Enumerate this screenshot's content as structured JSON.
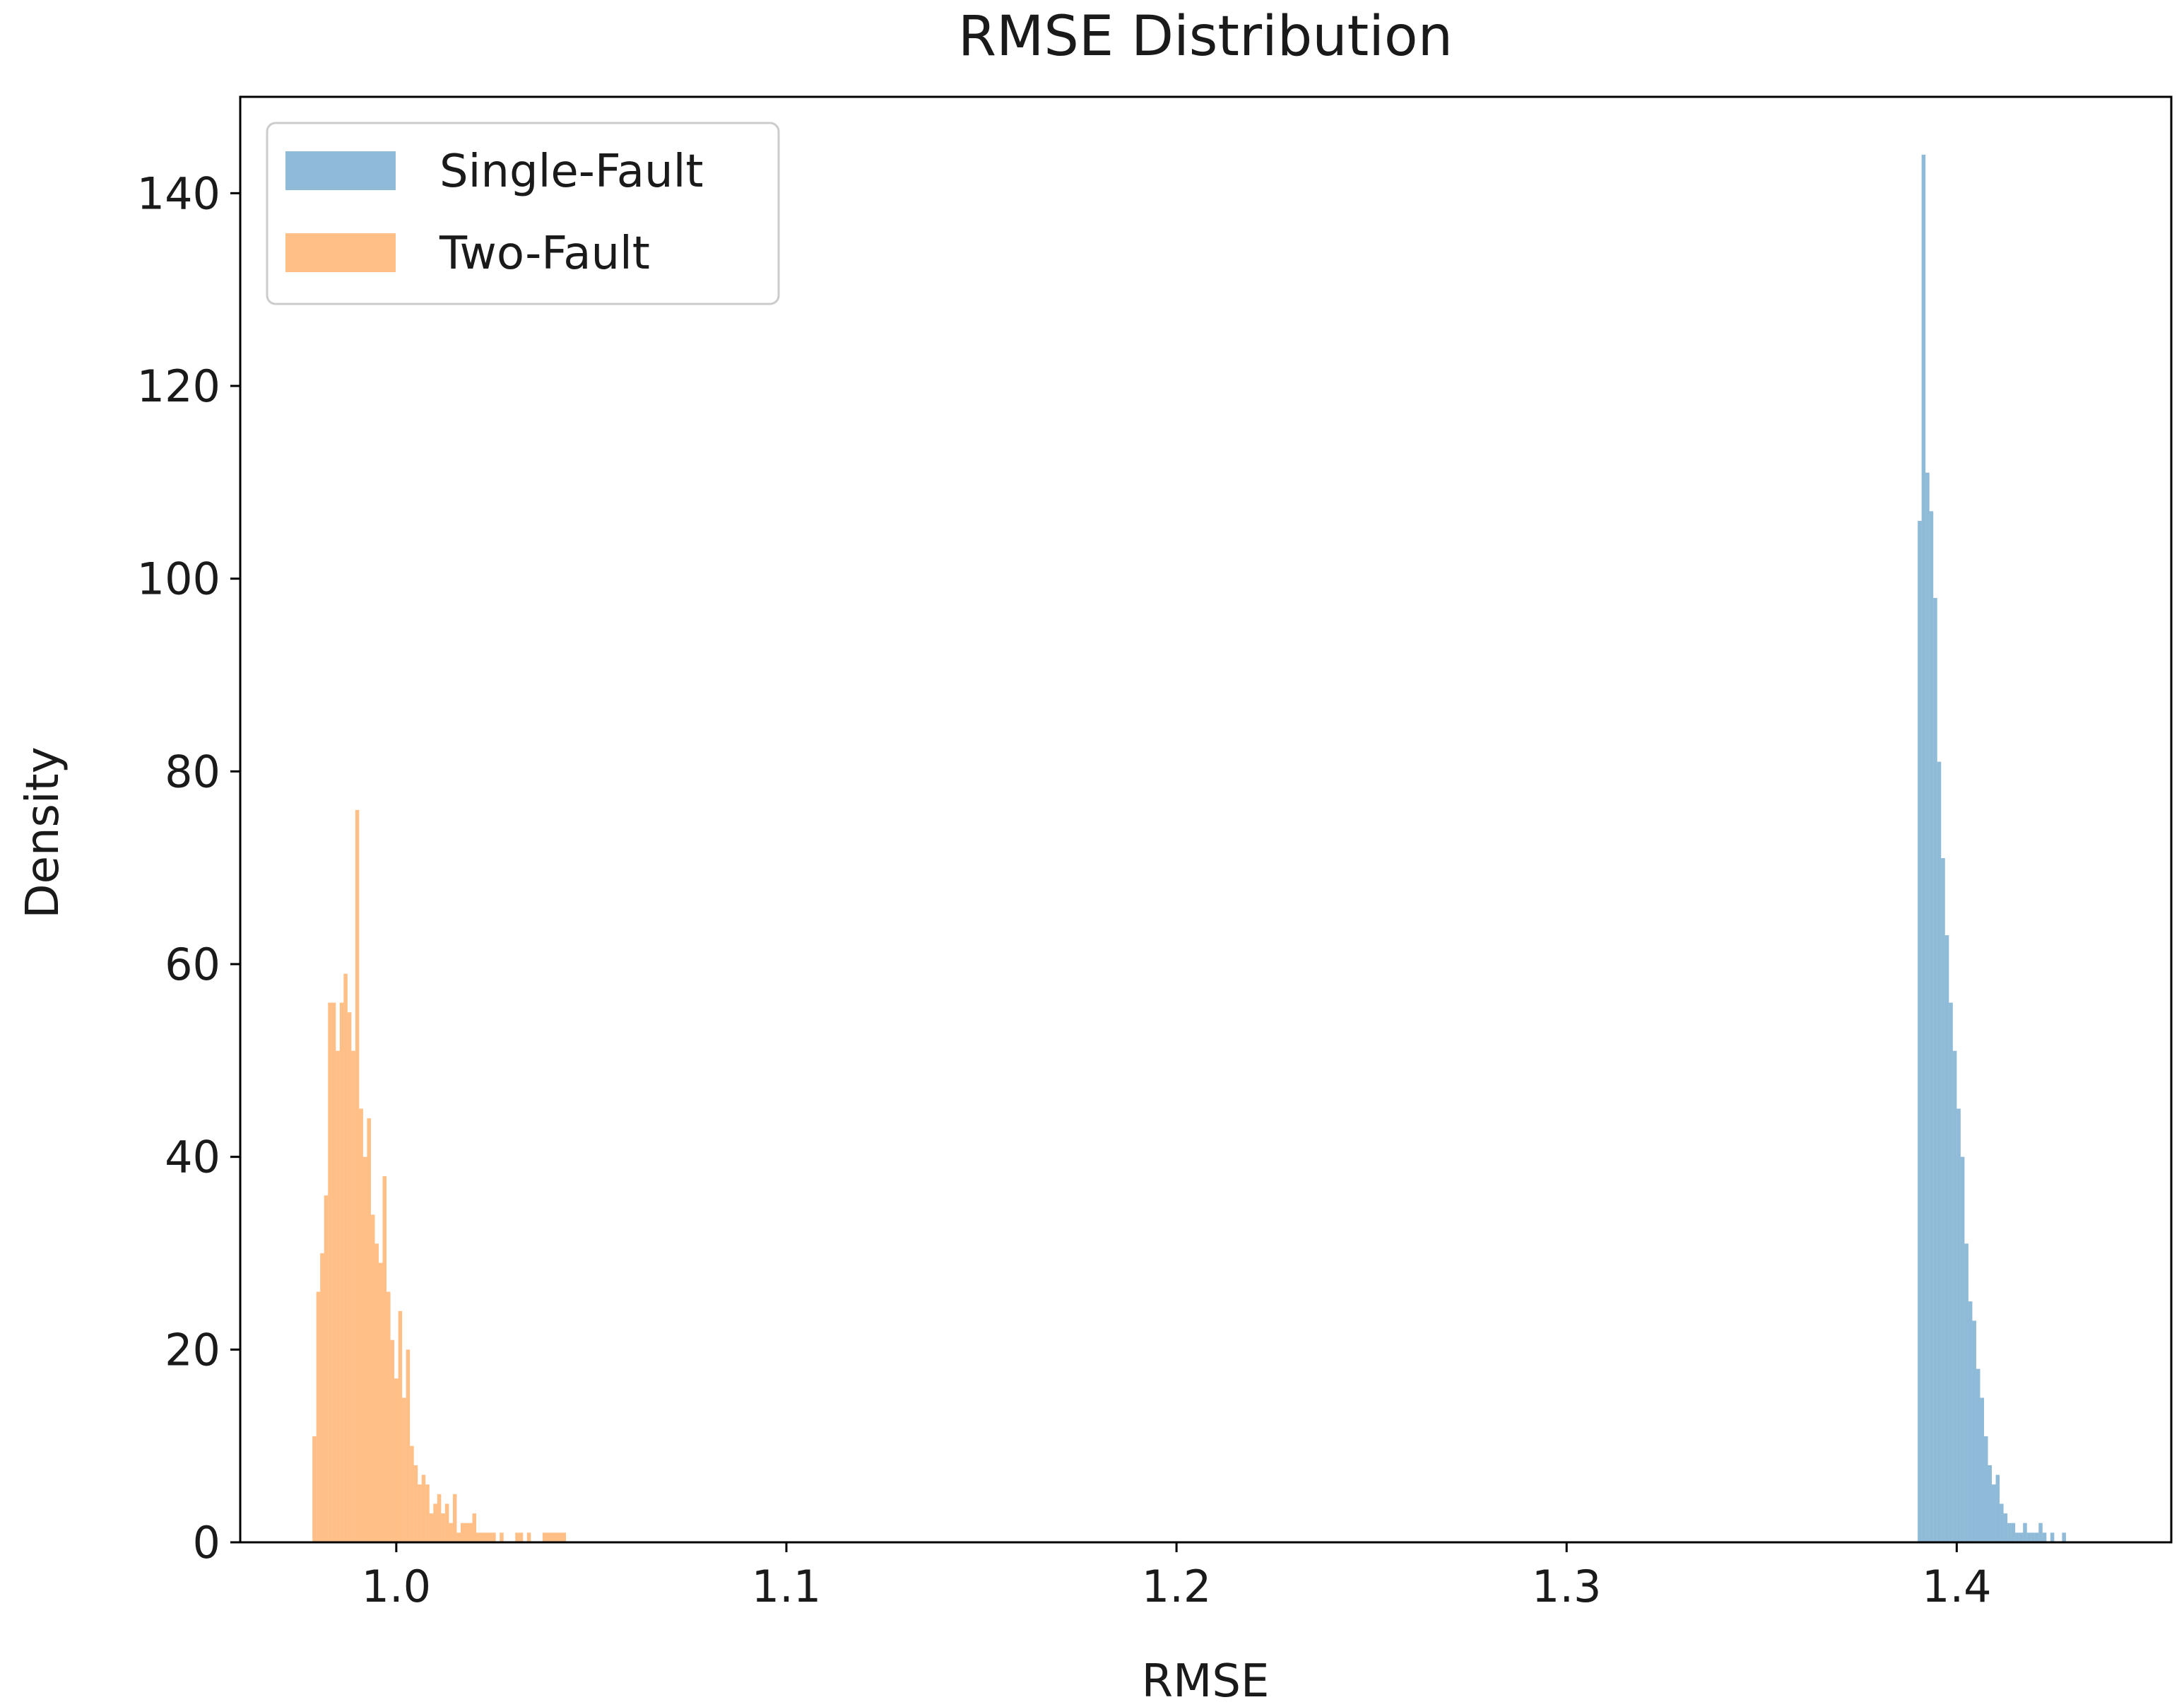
{
  "chart_data": {
    "type": "bar",
    "title": "RMSE Distribution",
    "xlabel": "RMSE",
    "ylabel": "Density",
    "xlim": [
      0.96,
      1.455
    ],
    "ylim": [
      0,
      150
    ],
    "xticks": [
      1.0,
      1.1,
      1.2,
      1.3,
      1.4
    ],
    "xtick_labels": [
      "1.0",
      "1.1",
      "1.2",
      "1.3",
      "1.4"
    ],
    "yticks": [
      0,
      20,
      40,
      60,
      80,
      100,
      120,
      140
    ],
    "ytick_labels": [
      "0",
      "20",
      "40",
      "60",
      "80",
      "100",
      "120",
      "140"
    ],
    "grid": false,
    "legend_position": "top-left",
    "series": [
      {
        "name": "Single-Fault",
        "color": "#1f77b4",
        "opacity": 0.5,
        "bin_start": 1.39,
        "bin_width": 0.001,
        "values": [
          106,
          144,
          111,
          107,
          98,
          81,
          71,
          63,
          56,
          51,
          45,
          40,
          31,
          25,
          23,
          18,
          15,
          11,
          8,
          6,
          7,
          4,
          3,
          2,
          2,
          1,
          1,
          2,
          1,
          1,
          1,
          2,
          1,
          0,
          1,
          0,
          0,
          1,
          0
        ]
      },
      {
        "name": "Two-Fault",
        "color": "#ff7f0e",
        "opacity": 0.5,
        "bin_start": 0.9785,
        "bin_width": 0.001,
        "values": [
          11,
          26,
          30,
          36,
          56,
          56,
          51,
          56,
          59,
          55,
          51,
          76,
          45,
          40,
          44,
          34,
          31,
          29,
          38,
          26,
          21,
          17,
          24,
          15,
          20,
          10,
          8,
          6,
          7,
          6,
          3,
          4,
          5,
          3,
          4,
          2,
          5,
          1,
          2,
          2,
          2,
          3,
          1,
          1,
          1,
          1,
          1,
          0,
          1,
          0,
          0,
          0,
          1,
          1,
          0,
          1,
          0,
          0,
          0,
          1,
          1,
          1,
          1,
          1,
          1
        ]
      }
    ]
  }
}
